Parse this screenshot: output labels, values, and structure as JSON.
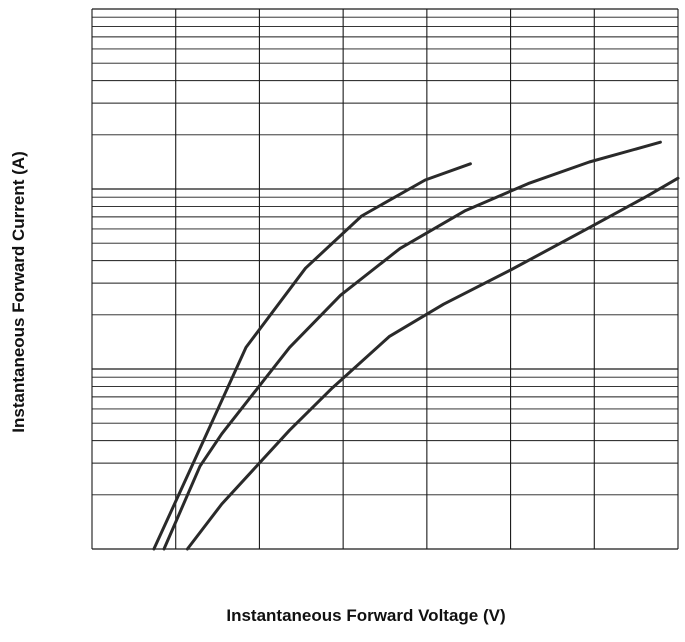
{
  "chart_data": {
    "type": "line",
    "title": "",
    "xlabel": "Instantaneous Forward Voltage (V)",
    "ylabel": "Instantaneous Forward Current (A)",
    "x_divisions": 7,
    "y_scale": "log",
    "y_decades": 3,
    "x_tick_labels": [],
    "y_tick_labels": [],
    "colors": {
      "curve": "#2a2a2a",
      "grid": "#1a1a1a",
      "text": "#111111",
      "background": "#ffffff"
    },
    "series": [
      {
        "points": [
          [
            0.74,
            0.0
          ],
          [
            1.31,
            0.58
          ],
          [
            1.84,
            1.12
          ],
          [
            2.55,
            1.56
          ],
          [
            3.22,
            1.85
          ],
          [
            3.98,
            2.05
          ],
          [
            4.52,
            2.14
          ]
        ]
      },
      {
        "points": [
          [
            0.86,
            0.0
          ],
          [
            1.29,
            0.46
          ],
          [
            1.55,
            0.64
          ],
          [
            2.36,
            1.12
          ],
          [
            2.97,
            1.41
          ],
          [
            3.68,
            1.67
          ],
          [
            4.46,
            1.88
          ],
          [
            5.21,
            2.03
          ],
          [
            5.94,
            2.15
          ],
          [
            6.79,
            2.26
          ]
        ]
      },
      {
        "points": [
          [
            1.14,
            0.0
          ],
          [
            1.55,
            0.25
          ],
          [
            2.36,
            0.66
          ],
          [
            2.86,
            0.89
          ],
          [
            3.55,
            1.18
          ],
          [
            4.2,
            1.36
          ],
          [
            5.0,
            1.55
          ],
          [
            5.92,
            1.78
          ],
          [
            6.63,
            1.96
          ],
          [
            7.0,
            2.06
          ]
        ]
      }
    ]
  }
}
